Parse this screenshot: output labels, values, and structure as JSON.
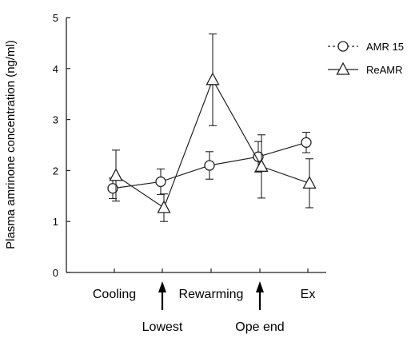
{
  "chart_data": {
    "type": "line",
    "ylabel": "Plasma amrinone concentration (ng/ml)",
    "xlabel": "",
    "ylim": [
      0,
      5
    ],
    "yticks": [
      "0",
      "1",
      "2",
      "3",
      "4",
      "5"
    ],
    "categories": [
      "Cooling",
      "Lowest",
      "Rewarming",
      "Ope end",
      "Ex"
    ],
    "x_tick_labels_top": [
      "Cooling",
      "Rewarming",
      "Ex"
    ],
    "x_tick_labels_bottom": [
      "Lowest",
      "Ope end"
    ],
    "legend_position": "top-right",
    "grid": false,
    "series": [
      {
        "name": "AMR 15",
        "marker": "circle",
        "values": [
          1.65,
          1.78,
          2.1,
          2.27,
          2.55
        ],
        "errors": [
          0.2,
          0.25,
          0.27,
          0.3,
          0.2
        ]
      },
      {
        "name": "ReAMR",
        "marker": "triangle",
        "values": [
          1.9,
          1.27,
          3.78,
          2.08,
          1.75
        ],
        "errors": [
          0.5,
          0.27,
          0.9,
          0.62,
          0.48
        ]
      }
    ]
  }
}
